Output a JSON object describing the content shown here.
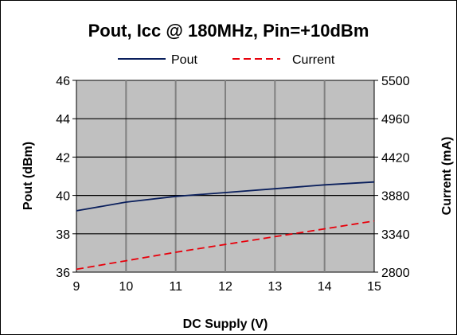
{
  "chart_data": {
    "type": "line",
    "title": "Pout, Icc @ 180MHz, Pin=+10dBm",
    "xlabel": "DC Supply (V)",
    "ylabel": "Pout  (dBm)",
    "y2label": "Current  (mA)",
    "xlim": [
      9,
      15
    ],
    "ylim": [
      36,
      46
    ],
    "y2lim": [
      2800,
      5500
    ],
    "x_ticks": [
      9,
      10,
      11,
      12,
      13,
      14,
      15
    ],
    "y_ticks": [
      36,
      38,
      40,
      42,
      44,
      46
    ],
    "y2_ticks": [
      2800,
      3340,
      3880,
      4420,
      4960,
      5500
    ],
    "grid": true,
    "legend": "top",
    "series": [
      {
        "name": "Pout",
        "axis": "left",
        "color": "#0a1f5c",
        "dash": "solid",
        "x": [
          9,
          10,
          11,
          12,
          13,
          14,
          15
        ],
        "values": [
          39.2,
          39.65,
          39.95,
          40.15,
          40.35,
          40.55,
          40.7
        ]
      },
      {
        "name": "Current",
        "axis": "right",
        "color": "#e8000b",
        "dash": "dashed",
        "x": [
          9,
          10,
          11,
          12,
          13,
          14,
          15
        ],
        "values": [
          2840,
          2960,
          3080,
          3190,
          3300,
          3410,
          3520
        ]
      }
    ],
    "plot_background": "#c0c0c0"
  }
}
